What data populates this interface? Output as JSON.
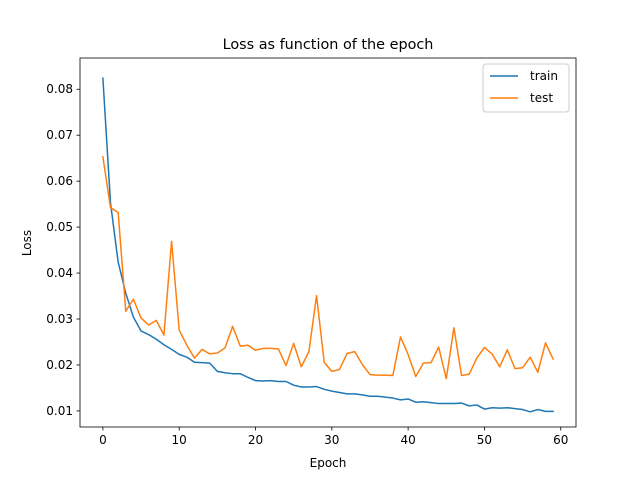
{
  "chart_data": {
    "type": "line",
    "title": "Loss as function of the epoch",
    "xlabel": "Epoch",
    "ylabel": "Loss",
    "xlim": [
      -3,
      62
    ],
    "ylim": [
      0.0065,
      0.0868
    ],
    "xticks": [
      0,
      10,
      20,
      30,
      40,
      50,
      60
    ],
    "yticks": [
      0.01,
      0.02,
      0.03,
      0.04,
      0.05,
      0.06,
      0.07,
      0.08
    ],
    "ytick_labels": [
      "0.01",
      "0.02",
      "0.03",
      "0.04",
      "0.05",
      "0.06",
      "0.07",
      "0.08"
    ],
    "grid": false,
    "legend_position": "top-right",
    "x": [
      0,
      1,
      2,
      3,
      4,
      5,
      6,
      7,
      8,
      9,
      10,
      11,
      12,
      13,
      14,
      15,
      16,
      17,
      18,
      19,
      20,
      21,
      22,
      23,
      24,
      25,
      26,
      27,
      28,
      29,
      30,
      31,
      32,
      33,
      34,
      35,
      36,
      37,
      38,
      39,
      40,
      41,
      42,
      43,
      44,
      45,
      46,
      47,
      48,
      49,
      50,
      51,
      52,
      53,
      54,
      55,
      56,
      57,
      58,
      59
    ],
    "series": [
      {
        "name": "train",
        "color": "#1f77b4",
        "values": [
          0.0824,
          0.0552,
          0.0424,
          0.0356,
          0.0304,
          0.0274,
          0.0266,
          0.0256,
          0.0244,
          0.0234,
          0.0223,
          0.0217,
          0.0206,
          0.0205,
          0.0204,
          0.0186,
          0.0183,
          0.0181,
          0.0181,
          0.0173,
          0.0166,
          0.0165,
          0.0166,
          0.0164,
          0.0164,
          0.0156,
          0.0152,
          0.0152,
          0.0153,
          0.0147,
          0.0143,
          0.014,
          0.0137,
          0.0137,
          0.0135,
          0.0132,
          0.0132,
          0.013,
          0.0128,
          0.0124,
          0.0126,
          0.0119,
          0.012,
          0.0118,
          0.0116,
          0.0116,
          0.0116,
          0.0117,
          0.0111,
          0.0113,
          0.0104,
          0.0107,
          0.0106,
          0.0107,
          0.0105,
          0.0103,
          0.0098,
          0.0103,
          0.0099,
          0.0099
        ]
      },
      {
        "name": "test",
        "color": "#ff7f0e",
        "values": [
          0.0653,
          0.0542,
          0.0532,
          0.0317,
          0.0343,
          0.0302,
          0.0287,
          0.0297,
          0.0265,
          0.0469,
          0.0276,
          0.0243,
          0.0215,
          0.0234,
          0.0224,
          0.0226,
          0.0237,
          0.0284,
          0.0241,
          0.0243,
          0.0232,
          0.0236,
          0.0236,
          0.0235,
          0.0199,
          0.0247,
          0.0196,
          0.0229,
          0.0351,
          0.0206,
          0.0186,
          0.019,
          0.0225,
          0.0229,
          0.0201,
          0.0179,
          0.0178,
          0.0178,
          0.0177,
          0.0261,
          0.0223,
          0.0175,
          0.0204,
          0.0205,
          0.0239,
          0.017,
          0.0281,
          0.0177,
          0.018,
          0.0215,
          0.0238,
          0.0224,
          0.0196,
          0.0233,
          0.0192,
          0.0194,
          0.0217,
          0.0184,
          0.0248,
          0.0213
        ]
      }
    ]
  }
}
